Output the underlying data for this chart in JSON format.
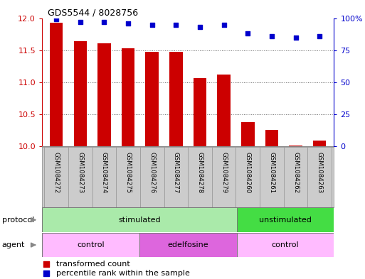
{
  "title": "GDS5544 / 8028756",
  "categories": [
    "GSM1084272",
    "GSM1084273",
    "GSM1084274",
    "GSM1084275",
    "GSM1084276",
    "GSM1084277",
    "GSM1084278",
    "GSM1084279",
    "GSM1084260",
    "GSM1084261",
    "GSM1084262",
    "GSM1084263"
  ],
  "bar_values": [
    11.93,
    11.64,
    11.61,
    11.53,
    11.47,
    11.47,
    11.07,
    11.12,
    10.38,
    10.26,
    10.02,
    10.09
  ],
  "dot_values": [
    99,
    97,
    97,
    96,
    95,
    95,
    93,
    95,
    88,
    86,
    85,
    86
  ],
  "ylim_left": [
    10,
    12
  ],
  "ylim_right": [
    0,
    100
  ],
  "yticks_left": [
    10,
    10.5,
    11,
    11.5,
    12
  ],
  "yticks_right": [
    0,
    25,
    50,
    75,
    100
  ],
  "bar_color": "#cc0000",
  "dot_color": "#0000cc",
  "protocol_groups": [
    {
      "label": "stimulated",
      "start": 0,
      "end": 7,
      "color": "#aaeaaa"
    },
    {
      "label": "unstimulated",
      "start": 8,
      "end": 11,
      "color": "#44dd44"
    }
  ],
  "agent_groups": [
    {
      "label": "control",
      "start": 0,
      "end": 3,
      "color": "#ffbbff"
    },
    {
      "label": "edelfosine",
      "start": 4,
      "end": 7,
      "color": "#dd66dd"
    },
    {
      "label": "control",
      "start": 8,
      "end": 11,
      "color": "#ffbbff"
    }
  ],
  "protocol_label": "protocol",
  "agent_label": "agent",
  "legend_bar": "transformed count",
  "legend_dot": "percentile rank within the sample",
  "background_color": "#ffffff",
  "xlab_bg": "#cccccc",
  "xlab_border": "#999999"
}
